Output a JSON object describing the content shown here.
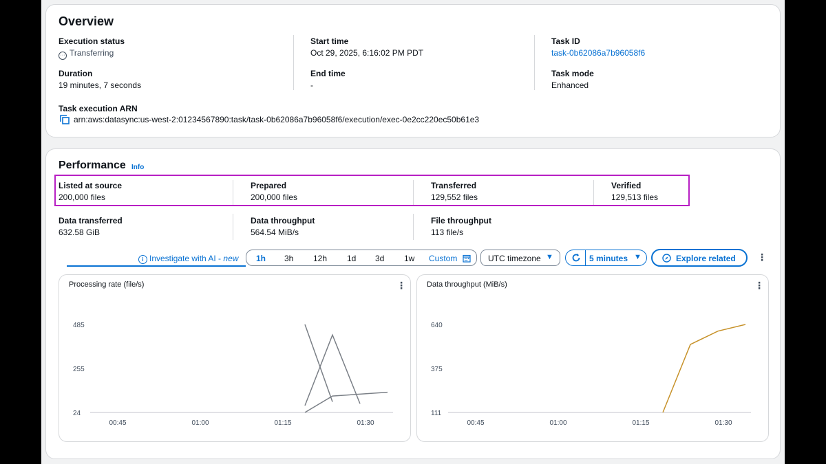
{
  "overview": {
    "title": "Overview",
    "execution_status_label": "Execution status",
    "execution_status_value": "Transferring",
    "start_time_label": "Start time",
    "start_time_value": "Oct 29, 2025, 6:16:02 PM PDT",
    "task_id_label": "Task ID",
    "task_id_value": "task-0b62086a7b96058f6",
    "duration_label": "Duration",
    "duration_value": "19 minutes, 7 seconds",
    "end_time_label": "End time",
    "end_time_value": "-",
    "task_mode_label": "Task mode",
    "task_mode_value": "Enhanced",
    "arn_label": "Task execution ARN",
    "arn_value": "arn:aws:datasync:us-west-2:01234567890:task/task-0b62086a7b96058f6/execution/exec-0e2cc220ec50b61e3"
  },
  "performance": {
    "title": "Performance",
    "info_link": "Info",
    "metrics": [
      {
        "label": "Listed at source",
        "value": "200,000 files"
      },
      {
        "label": "Prepared",
        "value": "200,000 files"
      },
      {
        "label": "Transferred",
        "value": "129,552 files"
      },
      {
        "label": "Verified",
        "value": "129,513 files"
      },
      {
        "label": "Data transferred",
        "value": "632.58 GiB"
      },
      {
        "label": "Data throughput",
        "value": "564.54 MiB/s"
      },
      {
        "label": "File throughput",
        "value": "113 file/s"
      }
    ]
  },
  "toolbar": {
    "investigate_label": "Investigate with AI - ",
    "investigate_new": "new",
    "ranges": [
      "1h",
      "3h",
      "12h",
      "1d",
      "3d",
      "1w"
    ],
    "selected_range": "1h",
    "custom_label": "Custom",
    "timezone_label": "UTC timezone",
    "refresh_interval": "5 minutes",
    "explore_label": "Explore related"
  },
  "chart_data": [
    {
      "type": "line",
      "title": "Processing rate (file/s)",
      "yticks": [
        485,
        255,
        24
      ],
      "ylim": [
        24,
        485
      ],
      "xticks": [
        "00:45",
        "01:00",
        "01:15",
        "01:30"
      ],
      "xlim_minutes": [
        40,
        95
      ],
      "series": [
        {
          "values": [
            [
              79,
              485
            ],
            [
              84,
              80
            ]
          ],
          "color": "#7a7f86"
        },
        {
          "values": [
            [
              79,
              60
            ],
            [
              84,
              430
            ],
            [
              89,
              70
            ]
          ],
          "color": "#7a7f86"
        },
        {
          "values": [
            [
              79,
              24
            ],
            [
              84,
              110
            ],
            [
              94,
              130
            ]
          ],
          "color": "#7a7f86"
        }
      ]
    },
    {
      "type": "line",
      "title": "Data throughput (MiB/s)",
      "yticks": [
        640,
        375,
        111
      ],
      "ylim": [
        111,
        640
      ],
      "xticks": [
        "00:45",
        "01:00",
        "01:15",
        "01:30"
      ],
      "xlim_minutes": [
        40,
        95
      ],
      "series": [
        {
          "values": [
            [
              79,
              111
            ],
            [
              84,
              520
            ],
            [
              89,
              600
            ],
            [
              94,
              640
            ]
          ],
          "color": "#c7922a"
        }
      ]
    }
  ]
}
